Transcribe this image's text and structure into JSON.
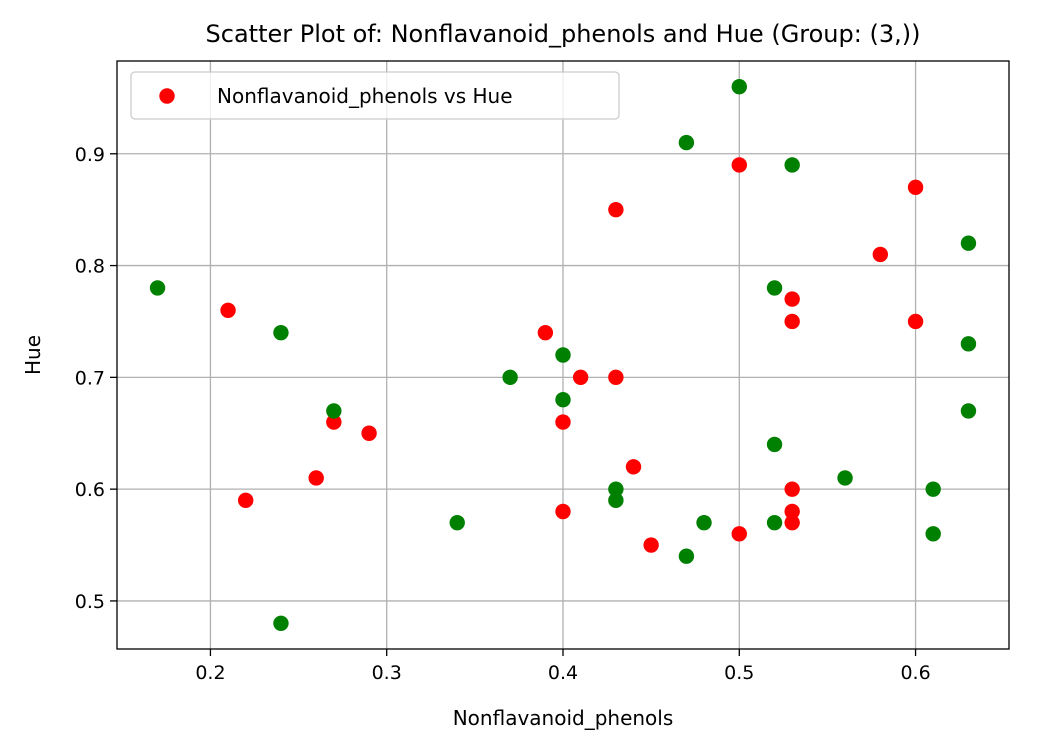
{
  "chart_data": {
    "type": "scatter",
    "title": "Scatter Plot of: Nonflavanoid_phenols and Hue (Group: (3,))",
    "xlabel": "Nonflavanoid_phenols",
    "ylabel": "Hue",
    "xlim": [
      0.147,
      0.653
    ],
    "ylim": [
      0.457,
      0.983
    ],
    "xticks": [
      0.2,
      0.3,
      0.4,
      0.5,
      0.6
    ],
    "yticks": [
      0.5,
      0.6,
      0.7,
      0.8,
      0.9
    ],
    "xtick_labels": [
      "0.2",
      "0.3",
      "0.4",
      "0.5",
      "0.6"
    ],
    "ytick_labels": [
      "0.5",
      "0.6",
      "0.7",
      "0.8",
      "0.9"
    ],
    "grid": true,
    "legend": {
      "position": "top-left",
      "entries": [
        "Nonflavanoid_phenols vs Hue"
      ]
    },
    "series": [
      {
        "name": "Nonflavanoid_phenols vs Hue",
        "color": "#ff0000",
        "points": [
          {
            "x": 0.21,
            "y": 0.76
          },
          {
            "x": 0.22,
            "y": 0.59
          },
          {
            "x": 0.26,
            "y": 0.61
          },
          {
            "x": 0.27,
            "y": 0.66
          },
          {
            "x": 0.29,
            "y": 0.65
          },
          {
            "x": 0.39,
            "y": 0.74
          },
          {
            "x": 0.4,
            "y": 0.66
          },
          {
            "x": 0.4,
            "y": 0.58
          },
          {
            "x": 0.41,
            "y": 0.7
          },
          {
            "x": 0.43,
            "y": 0.85
          },
          {
            "x": 0.43,
            "y": 0.7
          },
          {
            "x": 0.44,
            "y": 0.62
          },
          {
            "x": 0.45,
            "y": 0.55
          },
          {
            "x": 0.5,
            "y": 0.89
          },
          {
            "x": 0.5,
            "y": 0.56
          },
          {
            "x": 0.53,
            "y": 0.77
          },
          {
            "x": 0.53,
            "y": 0.75
          },
          {
            "x": 0.53,
            "y": 0.6
          },
          {
            "x": 0.53,
            "y": 0.58
          },
          {
            "x": 0.53,
            "y": 0.57
          },
          {
            "x": 0.58,
            "y": 0.81
          },
          {
            "x": 0.6,
            "y": 0.87
          },
          {
            "x": 0.6,
            "y": 0.75
          }
        ]
      },
      {
        "color": "#008000",
        "points": [
          {
            "x": 0.17,
            "y": 0.78
          },
          {
            "x": 0.24,
            "y": 0.74
          },
          {
            "x": 0.24,
            "y": 0.48
          },
          {
            "x": 0.27,
            "y": 0.67
          },
          {
            "x": 0.34,
            "y": 0.57
          },
          {
            "x": 0.37,
            "y": 0.7
          },
          {
            "x": 0.4,
            "y": 0.72
          },
          {
            "x": 0.4,
            "y": 0.68
          },
          {
            "x": 0.43,
            "y": 0.6
          },
          {
            "x": 0.43,
            "y": 0.59
          },
          {
            "x": 0.47,
            "y": 0.91
          },
          {
            "x": 0.47,
            "y": 0.54
          },
          {
            "x": 0.48,
            "y": 0.57
          },
          {
            "x": 0.5,
            "y": 0.96
          },
          {
            "x": 0.52,
            "y": 0.78
          },
          {
            "x": 0.52,
            "y": 0.64
          },
          {
            "x": 0.52,
            "y": 0.57
          },
          {
            "x": 0.53,
            "y": 0.89
          },
          {
            "x": 0.56,
            "y": 0.61
          },
          {
            "x": 0.61,
            "y": 0.6
          },
          {
            "x": 0.61,
            "y": 0.56
          },
          {
            "x": 0.63,
            "y": 0.82
          },
          {
            "x": 0.63,
            "y": 0.73
          },
          {
            "x": 0.63,
            "y": 0.67
          }
        ]
      }
    ]
  }
}
